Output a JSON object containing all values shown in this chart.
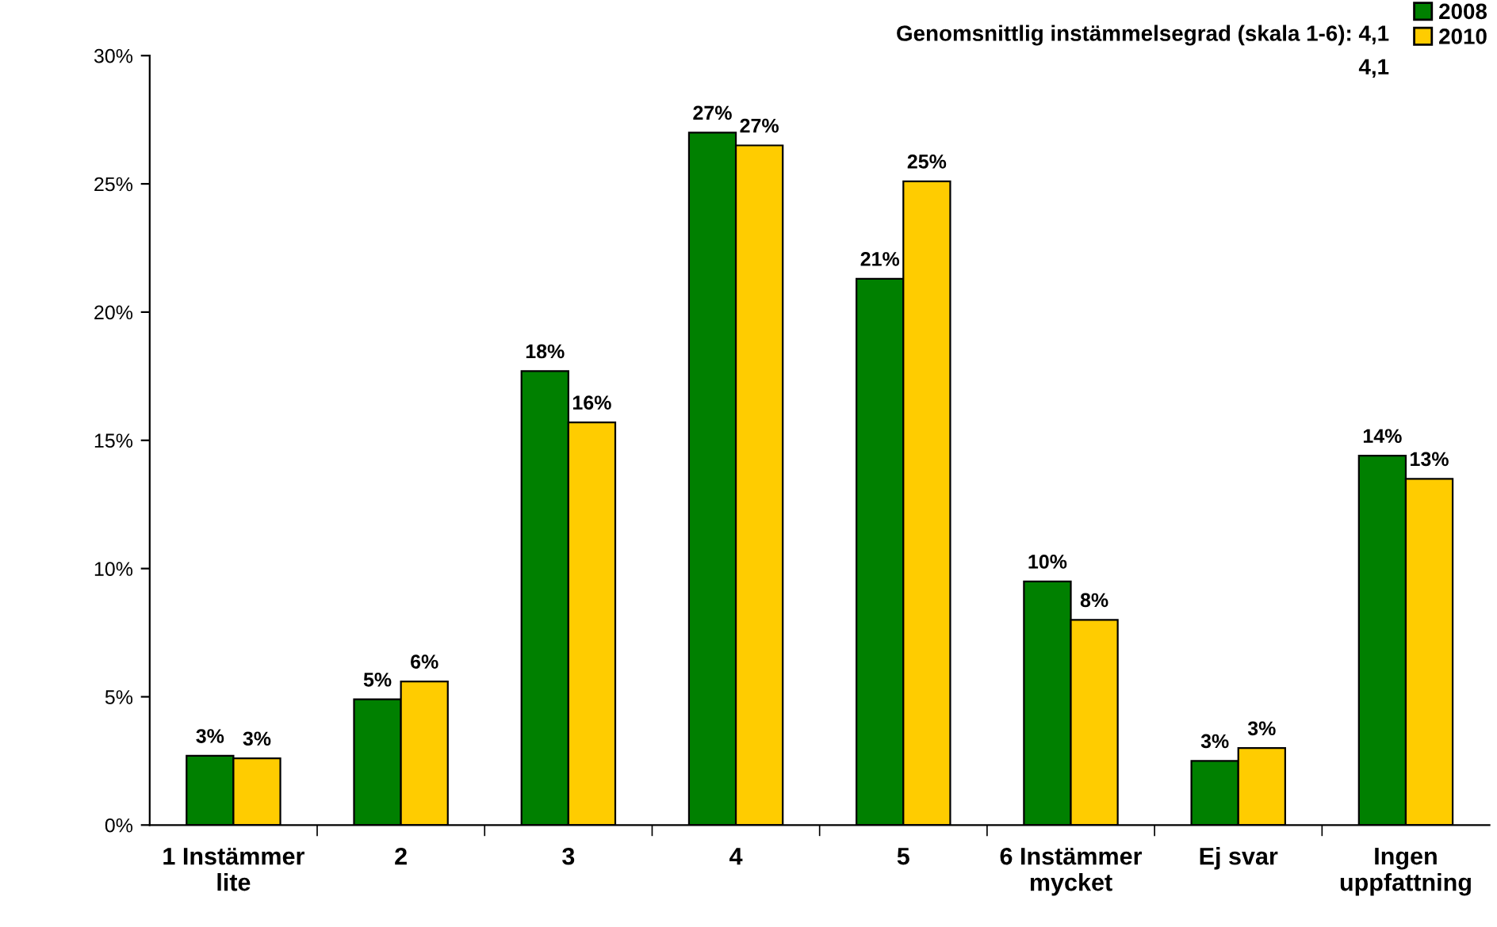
{
  "chart_data": {
    "type": "bar",
    "categories": [
      "1 Instämmer\nlite",
      "2",
      "3",
      "4",
      "5",
      "6 Instämmer\nmycket",
      "Ej svar",
      "Ingen\nuppfattning"
    ],
    "series": [
      {
        "name": "2008",
        "color": "#008000",
        "values": [
          2.7,
          4.9,
          17.7,
          27.0,
          21.3,
          9.5,
          2.5,
          14.4
        ],
        "value_labels": [
          "3%",
          "5%",
          "18%",
          "27%",
          "21%",
          "10%",
          "3%",
          "14%"
        ]
      },
      {
        "name": "2010",
        "color": "#ffcc00",
        "values": [
          2.6,
          5.6,
          15.7,
          26.5,
          25.1,
          8.0,
          3.0,
          13.5
        ],
        "value_labels": [
          "3%",
          "6%",
          "16%",
          "27%",
          "25%",
          "8%",
          "3%",
          "13%"
        ]
      }
    ],
    "ylim": [
      0,
      30
    ],
    "yticks": [
      {
        "value": 0,
        "label": "0%"
      },
      {
        "value": 5,
        "label": "5%"
      },
      {
        "value": 10,
        "label": "10%"
      },
      {
        "value": 15,
        "label": "15%"
      },
      {
        "value": 20,
        "label": "20%"
      },
      {
        "value": 25,
        "label": "25%"
      },
      {
        "value": 30,
        "label": "30%"
      }
    ],
    "annotations": [
      "Genomsnittlig instämmelsegrad (skala 1-6): 4,1",
      "4,1"
    ],
    "legend": "top right",
    "grid": false
  }
}
